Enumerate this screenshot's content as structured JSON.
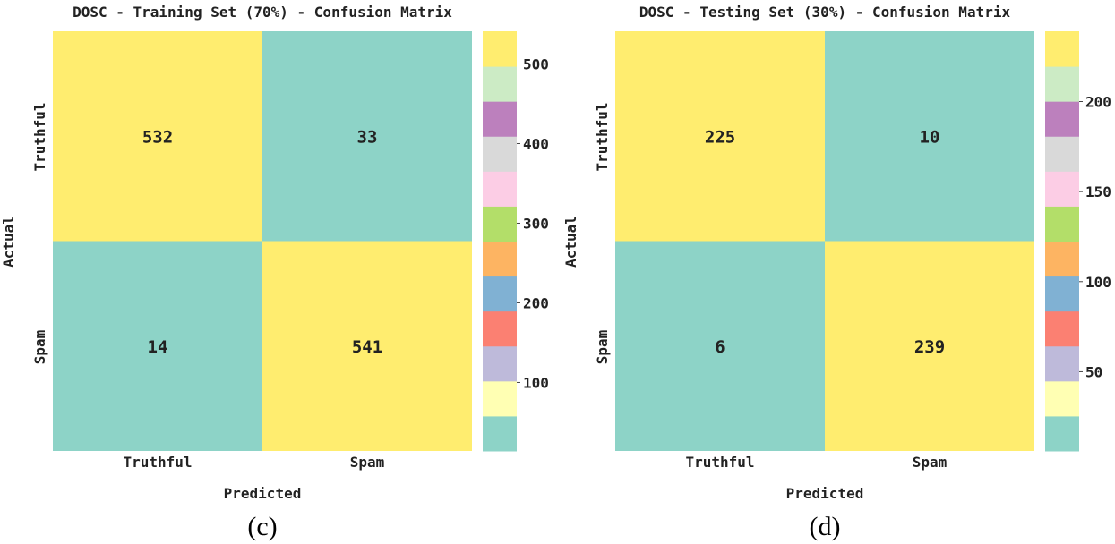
{
  "chart_data": [
    {
      "type": "heatmap",
      "title": "DOSC - Training Set (70%) - Confusion Matrix",
      "xlabel": "Predicted",
      "ylabel": "Actual",
      "x_categories": [
        "Truthful",
        "Spam"
      ],
      "y_categories": [
        "Truthful",
        "Spam"
      ],
      "values": [
        [
          532,
          33
        ],
        [
          14,
          541
        ]
      ],
      "colorbar": {
        "ticks": [
          100,
          200,
          300,
          400,
          500
        ],
        "range": [
          14,
          541
        ]
      },
      "caption": "(c)"
    },
    {
      "type": "heatmap",
      "title": "DOSC - Testing Set (30%) - Confusion Matrix",
      "xlabel": "Predicted",
      "ylabel": "Actual",
      "x_categories": [
        "Truthful",
        "Spam"
      ],
      "y_categories": [
        "Truthful",
        "Spam"
      ],
      "values": [
        [
          225,
          10
        ],
        [
          6,
          239
        ]
      ],
      "colorbar": {
        "ticks": [
          50,
          100,
          150,
          200
        ],
        "range": [
          6,
          239
        ]
      },
      "caption": "(d)"
    }
  ],
  "colormap": [
    "#8dd3c7",
    "#ffffb3",
    "#bebada",
    "#fb8072",
    "#80b1d3",
    "#fdb462",
    "#b3de69",
    "#fccde5",
    "#d9d9d9",
    "#bc80bd",
    "#ccebc5",
    "#ffed6f"
  ]
}
